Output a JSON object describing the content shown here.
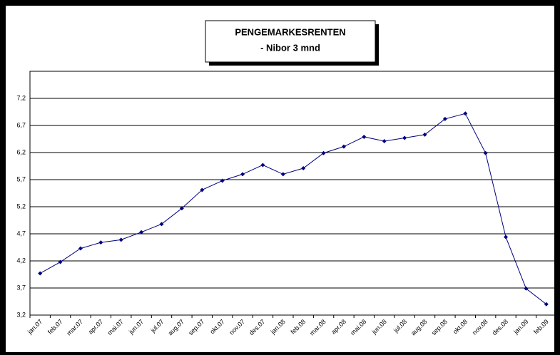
{
  "chart_data": {
    "type": "line",
    "title": "PENGEMARKESRENTEN",
    "subtitle": "- Nibor 3 mnd",
    "categories": [
      "jan.07",
      "feb.07",
      "mar.07",
      "apr.07",
      "mai.07",
      "jun.07",
      "jul.07",
      "aug.07",
      "sep.07",
      "okt.07",
      "nov.07",
      "des.07",
      "jan.08",
      "feb.08",
      "mar.08",
      "apr.08",
      "mai.08",
      "jun.08",
      "jul.08",
      "aug.08",
      "sep.08",
      "okt.08",
      "nov.08",
      "des.08",
      "jan.09",
      "feb.09"
    ],
    "series": [
      {
        "name": "Nibor 3 mnd",
        "color": "#000080",
        "values": [
          3.97,
          4.18,
          4.43,
          4.54,
          4.59,
          4.73,
          4.88,
          5.17,
          5.51,
          5.68,
          5.8,
          5.97,
          5.8,
          5.91,
          6.19,
          6.31,
          6.49,
          6.41,
          6.47,
          6.53,
          6.82,
          6.92,
          6.19,
          4.64,
          3.69,
          3.4
        ]
      }
    ],
    "ylim": [
      3.2,
      7.7
    ],
    "yticks": [
      {
        "value": 3.2,
        "label": "3,2"
      },
      {
        "value": 3.7,
        "label": "3,7"
      },
      {
        "value": 4.2,
        "label": "4,2"
      },
      {
        "value": 4.7,
        "label": "4,7"
      },
      {
        "value": 5.2,
        "label": "5,2"
      },
      {
        "value": 5.7,
        "label": "5,7"
      },
      {
        "value": 6.2,
        "label": "6,2"
      },
      {
        "value": 6.7,
        "label": "6,7"
      },
      {
        "value": 7.2,
        "label": "7,2"
      }
    ],
    "grid": true
  }
}
